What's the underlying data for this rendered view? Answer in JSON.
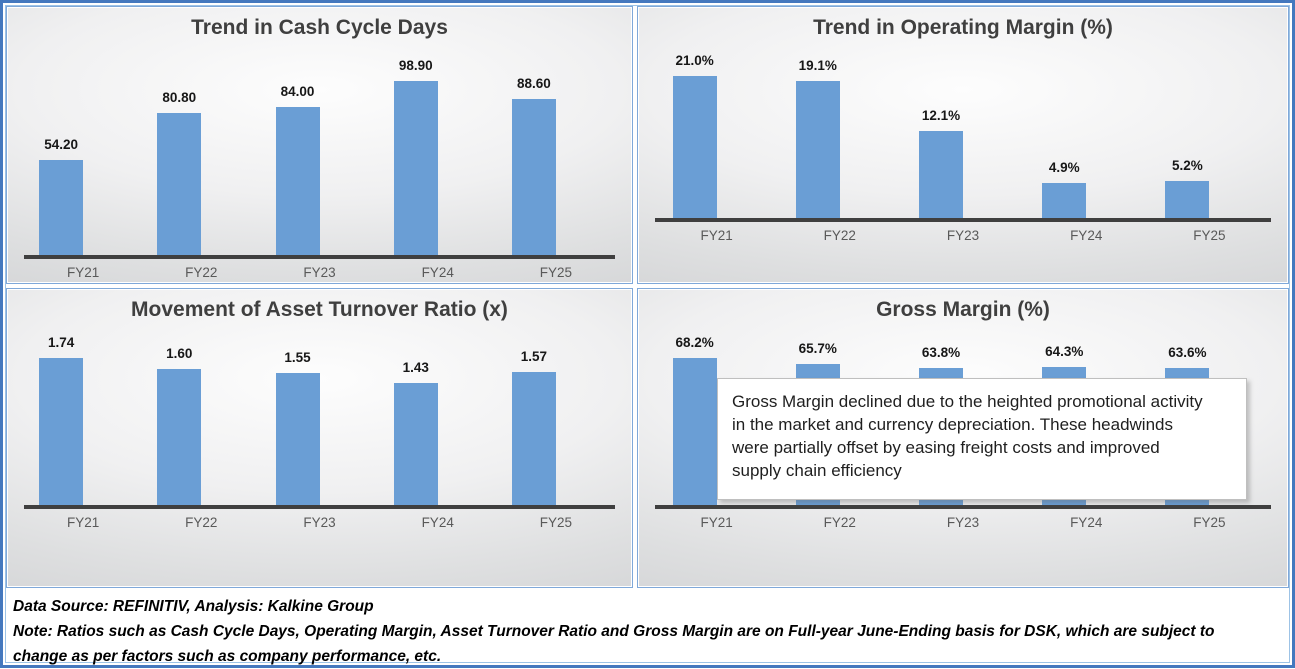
{
  "chart_data": [
    {
      "type": "bar",
      "title": "Trend in Cash Cycle Days",
      "categories": [
        "FY21",
        "FY22",
        "FY23",
        "FY24",
        "FY25"
      ],
      "values": [
        54.2,
        80.8,
        84.0,
        98.9,
        88.6
      ],
      "labels": [
        "54.20",
        "80.80",
        "84.00",
        "98.90",
        "88.60"
      ],
      "xlabel": "",
      "ylabel": "",
      "ylim": [
        0,
        115
      ],
      "grid": false,
      "legend": "none",
      "data_labels_position": "above-bar"
    },
    {
      "type": "bar",
      "title": "Trend in Operating Margin (%)",
      "categories": [
        "FY21",
        "FY22",
        "FY23",
        "FY24",
        "FY25"
      ],
      "values": [
        21.0,
        19.1,
        12.1,
        4.9,
        5.2
      ],
      "labels": [
        "21.0%",
        "19.1%",
        "12.1%",
        "4.9%",
        "5.2%"
      ],
      "xlabel": "",
      "ylabel": "",
      "ylim": [
        0,
        23
      ],
      "grid": false,
      "legend": "none",
      "data_labels_position": "above-bar"
    },
    {
      "type": "bar",
      "title": "Movement of Asset Turnover Ratio (x)",
      "categories": [
        "FY21",
        "FY22",
        "FY23",
        "FY24",
        "FY25"
      ],
      "values": [
        1.74,
        1.6,
        1.55,
        1.43,
        1.57
      ],
      "labels": [
        "1.74",
        "1.60",
        "1.55",
        "1.43",
        "1.57"
      ],
      "xlabel": "",
      "ylabel": "",
      "ylim": [
        0,
        2.0
      ],
      "grid": false,
      "legend": "none",
      "data_labels_position": "above-bar"
    },
    {
      "type": "bar",
      "title": "Gross Margin (%)",
      "categories": [
        "FY21",
        "FY22",
        "FY23",
        "FY24",
        "FY25"
      ],
      "values": [
        68.2,
        65.7,
        63.8,
        64.3,
        63.6
      ],
      "labels": [
        "68.2%",
        "65.7%",
        "63.8%",
        "64.3%",
        "63.6%"
      ],
      "xlabel": "",
      "ylabel": "",
      "ylim": [
        0,
        79
      ],
      "grid": false,
      "legend": "none",
      "data_labels_position": "above-bar"
    }
  ],
  "annotation": {
    "lines": [
      "Gross Margin declined due to the heighted promotional activity",
      "in the market and currency depreciation. These headwinds",
      "were partially offset by easing freight costs and improved",
      "supply chain efficiency"
    ]
  },
  "footer": {
    "source_line": "Data Source: REFINITIV, Analysis: Kalkine Group",
    "note": "Note: Ratios such as Cash Cycle Days, Operating Margin, Asset Turnover Ratio and Gross Margin are on Full-year June-Ending basis for DSK, which are subject to change as per factors such as company performance, etc."
  },
  "colors": {
    "bar": "#6A9ED5",
    "axis_line": "#3F3F3F",
    "title_text": "#3F3F3F",
    "data_label_text": "#171717",
    "category_text": "#595959",
    "frame_border": "#4478BE",
    "frame_inner_border": "#9DC3E6",
    "panel_border": "#7FA8D9",
    "annotation_border": "#BFBFBF",
    "annotation_background": "#FFFFFF"
  }
}
